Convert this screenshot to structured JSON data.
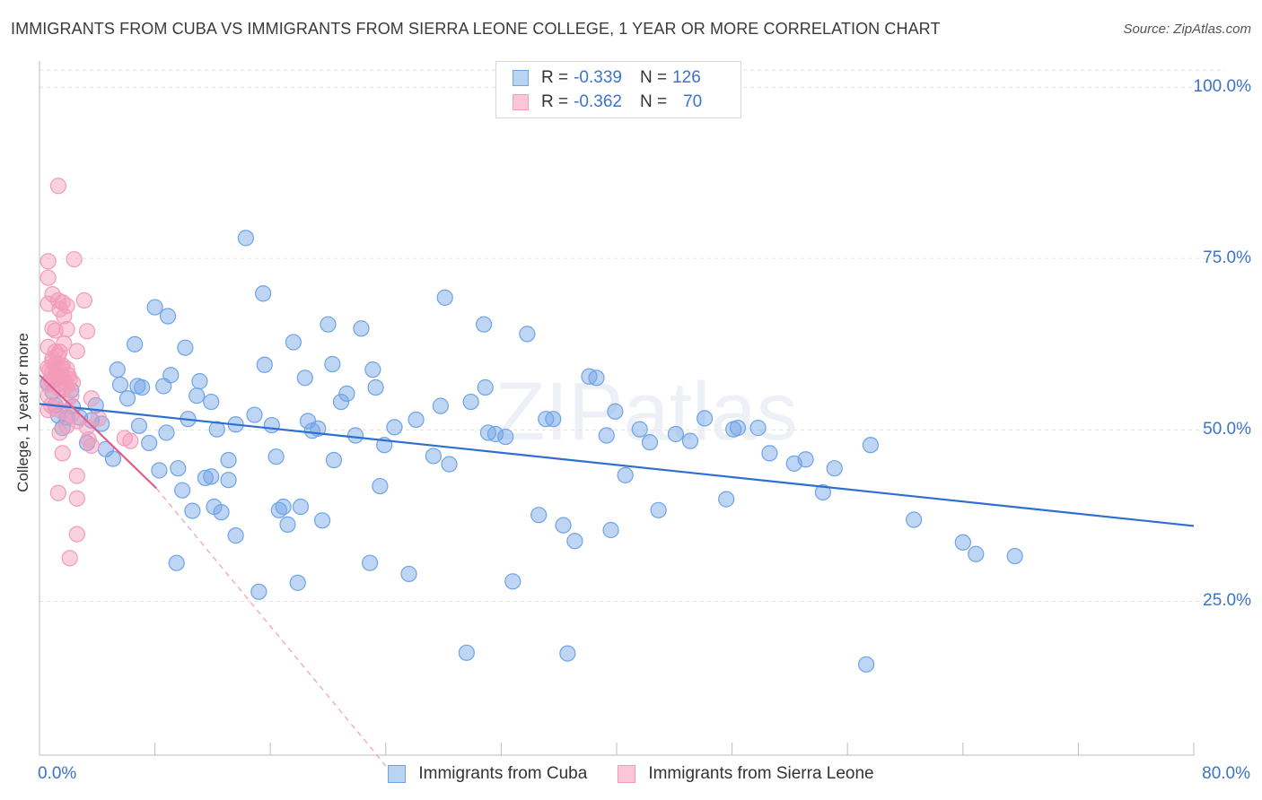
{
  "title": "IMMIGRANTS FROM CUBA VS IMMIGRANTS FROM SIERRA LEONE COLLEGE, 1 YEAR OR MORE CORRELATION CHART",
  "source": "Source: ZipAtlas.com",
  "watermark": "ZIPatlas",
  "legend": {
    "r_label": "R =",
    "n_label": "N =",
    "cuba": {
      "r": "-0.339",
      "n": "126"
    },
    "sierra": {
      "r": "-0.362",
      "n": "70"
    }
  },
  "chart_data": {
    "type": "scatter",
    "title": "IMMIGRANTS FROM CUBA VS IMMIGRANTS FROM SIERRA LEONE COLLEGE, 1 YEAR OR MORE CORRELATION CHART",
    "xlabel": "",
    "ylabel": "College, 1 year or more",
    "xlim": [
      0,
      80
    ],
    "ylim": [
      0,
      105
    ],
    "x_tick_labels": [
      "0.0%",
      "80.0%"
    ],
    "y_tick_labels": [
      "25.0%",
      "50.0%",
      "75.0%",
      "100.0%"
    ],
    "y_ticks": [
      25,
      50,
      75,
      100
    ],
    "grid": true,
    "legend_position": "top-center",
    "colors": {
      "cuba": "#6fa3e6",
      "cuba_line": "#2d6fd0",
      "sierra": "#f39bb8",
      "sierra_line": "#e05c8c"
    },
    "series": [
      {
        "name": "Immigrants from Cuba",
        "trend": {
          "x": [
            0,
            80
          ],
          "y": [
            53.8,
            36.0
          ]
        },
        "points": [
          [
            0.6,
            56.9
          ],
          [
            0.9,
            55.6
          ],
          [
            1.1,
            53.6
          ],
          [
            1.3,
            52.1
          ],
          [
            1.6,
            50.3
          ],
          [
            1.9,
            51.8
          ],
          [
            2.3,
            53.4
          ],
          [
            2.8,
            51.8
          ],
          [
            3.3,
            48.1
          ],
          [
            3.6,
            51.4
          ],
          [
            3.9,
            53.6
          ],
          [
            4.3,
            50.9
          ],
          [
            4.6,
            47.2
          ],
          [
            5.1,
            45.8
          ],
          [
            5.6,
            56.6
          ],
          [
            5.4,
            58.8
          ],
          [
            6.1,
            54.6
          ],
          [
            6.6,
            62.5
          ],
          [
            6.8,
            56.4
          ],
          [
            7.1,
            56.2
          ],
          [
            7.6,
            48.1
          ],
          [
            8.0,
            67.9
          ],
          [
            8.3,
            44.1
          ],
          [
            8.6,
            56.4
          ],
          [
            8.8,
            49.6
          ],
          [
            8.9,
            66.6
          ],
          [
            9.1,
            58.0
          ],
          [
            9.5,
            30.6
          ],
          [
            9.6,
            44.4
          ],
          [
            9.9,
            41.2
          ],
          [
            10.1,
            62.0
          ],
          [
            10.3,
            51.6
          ],
          [
            10.6,
            38.2
          ],
          [
            10.9,
            55.0
          ],
          [
            11.1,
            57.1
          ],
          [
            11.5,
            43.0
          ],
          [
            11.9,
            54.1
          ],
          [
            12.1,
            38.8
          ],
          [
            12.3,
            50.1
          ],
          [
            12.6,
            38.0
          ],
          [
            13.1,
            45.6
          ],
          [
            13.1,
            42.7
          ],
          [
            13.6,
            50.8
          ],
          [
            13.6,
            34.6
          ],
          [
            14.3,
            78.0
          ],
          [
            14.9,
            52.2
          ],
          [
            15.2,
            26.4
          ],
          [
            15.5,
            69.9
          ],
          [
            15.6,
            59.5
          ],
          [
            16.1,
            50.7
          ],
          [
            16.4,
            46.1
          ],
          [
            16.6,
            38.3
          ],
          [
            16.9,
            38.8
          ],
          [
            17.2,
            36.2
          ],
          [
            17.6,
            62.8
          ],
          [
            17.9,
            27.7
          ],
          [
            18.1,
            38.8
          ],
          [
            18.4,
            57.6
          ],
          [
            18.6,
            51.3
          ],
          [
            18.9,
            49.9
          ],
          [
            19.3,
            50.2
          ],
          [
            19.6,
            36.8
          ],
          [
            20.0,
            65.4
          ],
          [
            20.3,
            59.6
          ],
          [
            20.4,
            45.6
          ],
          [
            20.9,
            54.1
          ],
          [
            21.3,
            55.3
          ],
          [
            21.9,
            49.2
          ],
          [
            22.3,
            64.8
          ],
          [
            22.9,
            30.6
          ],
          [
            23.1,
            58.8
          ],
          [
            23.3,
            56.2
          ],
          [
            23.6,
            41.8
          ],
          [
            23.9,
            47.8
          ],
          [
            24.6,
            50.4
          ],
          [
            25.6,
            29.0
          ],
          [
            26.1,
            51.5
          ],
          [
            27.3,
            46.2
          ],
          [
            27.8,
            53.5
          ],
          [
            28.1,
            69.3
          ],
          [
            28.4,
            45.0
          ],
          [
            29.9,
            54.1
          ],
          [
            29.6,
            17.5
          ],
          [
            30.8,
            65.4
          ],
          [
            30.9,
            56.2
          ],
          [
            31.1,
            49.6
          ],
          [
            31.6,
            49.4
          ],
          [
            32.3,
            49.0
          ],
          [
            32.8,
            27.9
          ],
          [
            33.8,
            64.0
          ],
          [
            34.6,
            37.6
          ],
          [
            35.1,
            51.6
          ],
          [
            35.6,
            51.6
          ],
          [
            36.3,
            36.1
          ],
          [
            36.6,
            17.4
          ],
          [
            37.1,
            33.8
          ],
          [
            38.1,
            57.8
          ],
          [
            38.6,
            57.6
          ],
          [
            39.3,
            49.2
          ],
          [
            39.6,
            35.4
          ],
          [
            39.9,
            52.7
          ],
          [
            40.6,
            43.4
          ],
          [
            41.6,
            50.1
          ],
          [
            42.3,
            48.2
          ],
          [
            42.9,
            38.3
          ],
          [
            44.1,
            49.4
          ],
          [
            45.1,
            48.4
          ],
          [
            46.1,
            51.7
          ],
          [
            47.6,
            39.9
          ],
          [
            48.1,
            50.1
          ],
          [
            48.4,
            50.3
          ],
          [
            49.8,
            50.3
          ],
          [
            50.6,
            46.6
          ],
          [
            52.3,
            45.1
          ],
          [
            53.1,
            45.7
          ],
          [
            54.3,
            40.9
          ],
          [
            55.1,
            44.4
          ],
          [
            57.3,
            15.8
          ],
          [
            57.6,
            47.8
          ],
          [
            60.6,
            36.9
          ],
          [
            64.0,
            33.6
          ],
          [
            64.9,
            31.9
          ],
          [
            67.6,
            31.6
          ],
          [
            2.2,
            55.8
          ],
          [
            6.9,
            50.6
          ],
          [
            11.9,
            43.2
          ]
        ]
      },
      {
        "name": "Immigrants from Sierra Leone",
        "trend": {
          "x": [
            0,
            8.1
          ],
          "y": [
            58.0,
            41.5
          ]
        },
        "trend_dashed": {
          "x": [
            8.1,
            24.0
          ],
          "y": [
            41.5,
            1.0
          ]
        },
        "points": [
          [
            1.3,
            85.6
          ],
          [
            0.6,
            74.6
          ],
          [
            2.4,
            74.9
          ],
          [
            0.6,
            72.2
          ],
          [
            0.9,
            69.8
          ],
          [
            0.6,
            68.4
          ],
          [
            1.3,
            68.9
          ],
          [
            1.4,
            67.6
          ],
          [
            1.6,
            68.6
          ],
          [
            1.9,
            68.1
          ],
          [
            1.7,
            66.6
          ],
          [
            3.1,
            68.9
          ],
          [
            0.9,
            64.8
          ],
          [
            1.1,
            64.5
          ],
          [
            1.9,
            64.7
          ],
          [
            3.3,
            64.4
          ],
          [
            0.6,
            62.1
          ],
          [
            1.1,
            61.4
          ],
          [
            1.4,
            61.4
          ],
          [
            1.3,
            60.8
          ],
          [
            2.6,
            61.5
          ],
          [
            0.9,
            59.9
          ],
          [
            0.6,
            59.1
          ],
          [
            1.1,
            59.6
          ],
          [
            1.6,
            59.4
          ],
          [
            1.3,
            58.9
          ],
          [
            1.9,
            58.9
          ],
          [
            0.9,
            58.4
          ],
          [
            1.1,
            58.1
          ],
          [
            1.4,
            57.9
          ],
          [
            1.6,
            57.7
          ],
          [
            0.8,
            57.1
          ],
          [
            2.1,
            57.4
          ],
          [
            1.9,
            56.4
          ],
          [
            2.3,
            56.9
          ],
          [
            1.3,
            56.1
          ],
          [
            0.6,
            56.6
          ],
          [
            1.6,
            55.9
          ],
          [
            2.2,
            55.0
          ],
          [
            1.9,
            54.2
          ],
          [
            3.6,
            54.6
          ],
          [
            0.8,
            53.6
          ],
          [
            1.1,
            53.1
          ],
          [
            1.6,
            52.7
          ],
          [
            2.2,
            52.2
          ],
          [
            2.6,
            51.3
          ],
          [
            0.6,
            52.9
          ],
          [
            1.9,
            50.6
          ],
          [
            3.3,
            50.4
          ],
          [
            4.1,
            51.7
          ],
          [
            1.4,
            49.6
          ],
          [
            3.4,
            48.6
          ],
          [
            5.9,
            48.8
          ],
          [
            6.3,
            48.4
          ],
          [
            3.6,
            47.7
          ],
          [
            1.6,
            46.6
          ],
          [
            2.6,
            43.3
          ],
          [
            1.3,
            40.8
          ],
          [
            2.6,
            40.0
          ],
          [
            2.6,
            34.8
          ],
          [
            2.1,
            31.3
          ],
          [
            0.9,
            60.4
          ],
          [
            1.7,
            62.6
          ],
          [
            0.6,
            55.0
          ],
          [
            1.2,
            57.9
          ],
          [
            0.7,
            58.7
          ],
          [
            1.5,
            59.2
          ],
          [
            1.0,
            57.5
          ],
          [
            1.8,
            56.9
          ],
          [
            2.0,
            58.0
          ]
        ]
      }
    ]
  }
}
